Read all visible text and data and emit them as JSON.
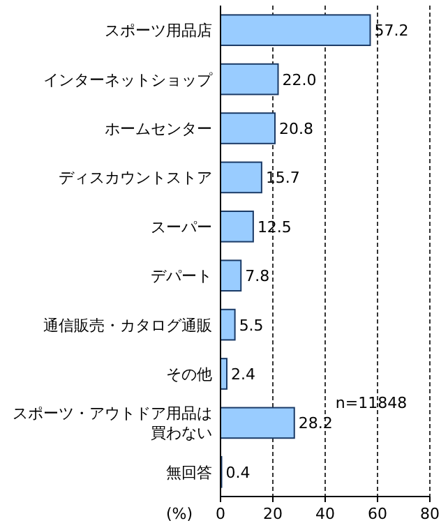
{
  "chart_data": {
    "type": "bar",
    "orientation": "horizontal",
    "xlabel": "(%)",
    "categories": [
      "スポーツ用品店",
      "インターネットショップ",
      "ホームセンター",
      "ディスカウントストア",
      "スーパー",
      "デパート",
      "通信販売・カタログ通販",
      "その他",
      "スポーツ・アウトドア用品は買わない",
      "無回答"
    ],
    "values": [
      57.2,
      22.0,
      20.8,
      15.7,
      12.5,
      7.8,
      5.5,
      2.4,
      28.2,
      0.4
    ],
    "value_labels": [
      "57.2",
      "22.0",
      "20.8",
      "15.7",
      "12.5",
      "7.8",
      "5.5",
      "2.4",
      "28.2",
      "0.4"
    ],
    "color": "#99ccff",
    "xlim": [
      0,
      80
    ],
    "xticks": [
      0,
      20,
      40,
      60,
      80
    ],
    "grid": "x",
    "annotations": [
      "n=11848"
    ]
  }
}
